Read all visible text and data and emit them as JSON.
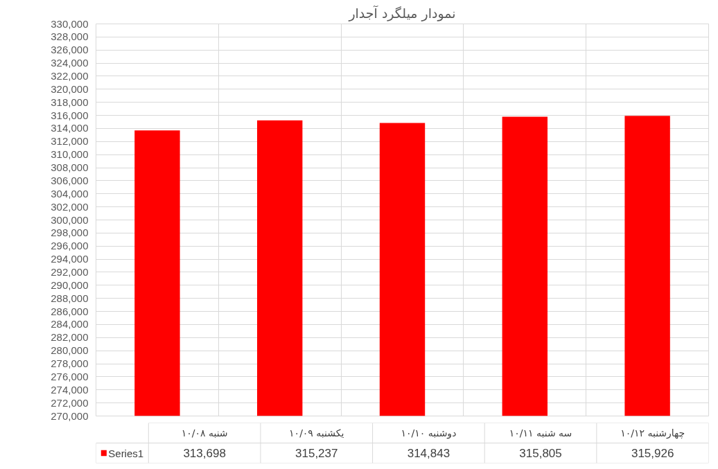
{
  "chart_data": {
    "type": "bar",
    "title": "نمودار میلگرد آجدار",
    "categories": [
      "شنبه ۱۰/۰۸",
      "یکشنبه ۱۰/۰۹",
      "دوشنبه ۱۰/۱۰",
      "سه شنبه ۱۰/۱۱",
      "چهارشنبه ۱۰/۱۲"
    ],
    "series": [
      {
        "name": "Series1",
        "color": "#ff0000",
        "values": [
          313698,
          315237,
          314843,
          315805,
          315926
        ],
        "value_labels": [
          "313,698",
          "315,237",
          "314,843",
          "315,805",
          "315,926"
        ]
      }
    ],
    "ylim": [
      270000,
      330000
    ],
    "yticks": [
      {
        "value": 270000,
        "label": "270,000"
      },
      {
        "value": 272000,
        "label": "272,000"
      },
      {
        "value": 274000,
        "label": "274,000"
      },
      {
        "value": 276000,
        "label": "276,000"
      },
      {
        "value": 278000,
        "label": "278,000"
      },
      {
        "value": 280000,
        "label": "280,000"
      },
      {
        "value": 282000,
        "label": "282,000"
      },
      {
        "value": 284000,
        "label": "284,000"
      },
      {
        "value": 286000,
        "label": "286,000"
      },
      {
        "value": 288000,
        "label": "288,000"
      },
      {
        "value": 290000,
        "label": "290,000"
      },
      {
        "value": 292000,
        "label": "292,000"
      },
      {
        "value": 294000,
        "label": "294,000"
      },
      {
        "value": 296000,
        "label": "296,000"
      },
      {
        "value": 298000,
        "label": "298,000"
      },
      {
        "value": 300000,
        "label": "300,000"
      },
      {
        "value": 302000,
        "label": "302,000"
      },
      {
        "value": 304000,
        "label": "304,000"
      },
      {
        "value": 306000,
        "label": "306,000"
      },
      {
        "value": 308000,
        "label": "308,000"
      },
      {
        "value": 310000,
        "label": "310,000"
      },
      {
        "value": 312000,
        "label": "312,000"
      },
      {
        "value": 314000,
        "label": "314,000"
      },
      {
        "value": 316000,
        "label": "316,000"
      },
      {
        "value": 318000,
        "label": "318,000"
      },
      {
        "value": 320000,
        "label": "320,000"
      },
      {
        "value": 322000,
        "label": "322,000"
      },
      {
        "value": 324000,
        "label": "324,000"
      },
      {
        "value": 326000,
        "label": "326,000"
      },
      {
        "value": 328000,
        "label": "328,000"
      },
      {
        "value": 330000,
        "label": "330,000"
      }
    ],
    "grid": true,
    "legend": "bottom"
  }
}
